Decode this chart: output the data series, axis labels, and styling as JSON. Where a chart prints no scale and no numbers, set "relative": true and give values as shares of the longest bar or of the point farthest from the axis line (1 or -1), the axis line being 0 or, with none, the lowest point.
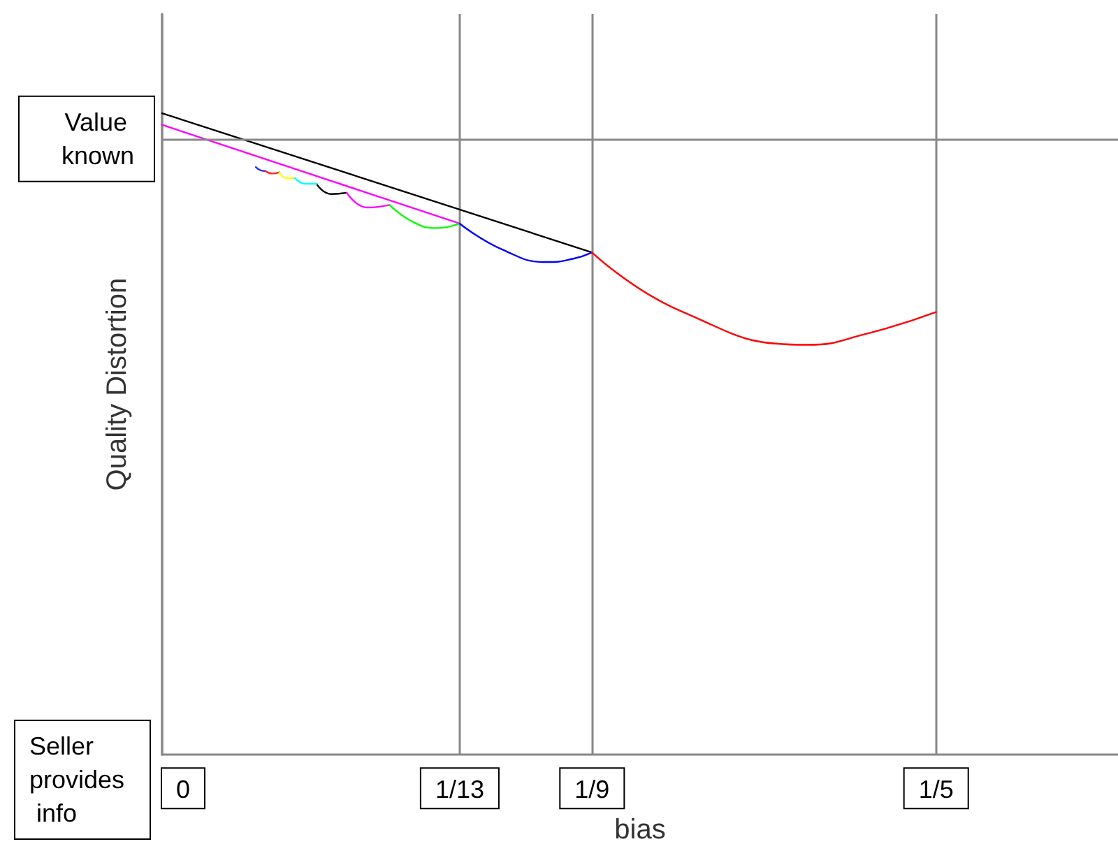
{
  "chart_data": {
    "type": "line",
    "xlabel": "bias",
    "ylabel": "Quality Distortion",
    "relative": true,
    "xlim": [
      0,
      0.247
    ],
    "xticks": [
      0,
      {
        "value": 0.0769,
        "label": "1/13"
      },
      {
        "value": 0.1111,
        "label": "1/9"
      },
      {
        "value": 0.2,
        "label": "1/5"
      }
    ],
    "ref_lines": [
      {
        "axis": "y",
        "value": 0.962,
        "label": "Value known",
        "color": "#888888"
      }
    ],
    "annotations": [
      "Seller provides info"
    ],
    "grid": "x",
    "marker": "none",
    "line_style": "solid",
    "series": [
      {
        "color": "#000000",
        "x": [
          0,
          0.1111
        ],
        "values": [
          1,
          0.783
        ]
      },
      {
        "color": "#ff00ff",
        "x": [
          0,
          0.0769
        ],
        "values": [
          0.982,
          0.828
        ]
      },
      {
        "color": "#2a2aff",
        "x": [
          0.0242,
          0.0255,
          0.0267
        ],
        "values": [
          0.916,
          0.911,
          0.91
        ]
      },
      {
        "color": "#ff2a2a",
        "x": [
          0.0267,
          0.0285,
          0.0303
        ],
        "values": [
          0.91,
          0.906,
          0.908
        ]
      },
      {
        "color": "#ffff00",
        "x": [
          0.0303,
          0.0321,
          0.0343
        ],
        "values": [
          0.908,
          0.899,
          0.899
        ]
      },
      {
        "color": "#00ffff",
        "x": [
          0.0343,
          0.0372,
          0.0401
        ],
        "values": [
          0.899,
          0.89,
          0.89
        ]
      },
      {
        "color": "#000000",
        "x": [
          0.0401,
          0.0437,
          0.0477
        ],
        "values": [
          0.888,
          0.874,
          0.876
        ]
      },
      {
        "color": "#ff00ff",
        "x": [
          0.0477,
          0.0531,
          0.0588
        ],
        "values": [
          0.876,
          0.853,
          0.857
        ]
      },
      {
        "color": "#00ff00",
        "x": [
          0.0588,
          0.065,
          0.0711,
          0.0769
        ],
        "values": [
          0.857,
          0.83,
          0.821,
          0.828
        ]
      },
      {
        "color": "#0000ff",
        "x": [
          0.0769,
          0.0881,
          0.0996,
          0.1061,
          0.1111
        ],
        "values": [
          0.828,
          0.787,
          0.768,
          0.773,
          0.783
        ]
      },
      {
        "color": "#ff0000",
        "x": [
          0.1111,
          0.1339,
          0.1668,
          0.1819,
          0.2
        ],
        "values": [
          0.783,
          0.692,
          0.639,
          0.656,
          0.69
        ]
      }
    ]
  }
}
